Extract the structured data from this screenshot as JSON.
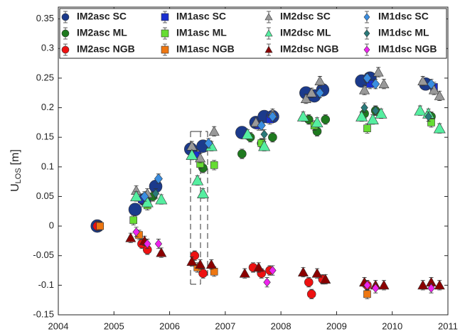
{
  "chart_data": {
    "type": "scatter",
    "ylabel": "U",
    "ylabel_sub": "LOS",
    "ylabel_unit": "[m]",
    "xlim": [
      2004,
      2011
    ],
    "xticks": [
      2004,
      2005,
      2006,
      2007,
      2008,
      2009,
      2010,
      2011
    ],
    "ylim": [
      -0.15,
      0.37
    ],
    "yticks": [
      -0.15,
      -0.1,
      -0.05,
      0,
      0.05,
      0.1,
      0.15,
      0.2,
      0.25,
      0.3,
      0.35
    ],
    "grid": false,
    "legend": "top",
    "series": [
      {
        "name": "IM2asc SC",
        "color": "#1b3a8c",
        "marker": "circle",
        "size": 9,
        "error": 0.008,
        "x": [
          2004.7,
          2005.38,
          2005.55,
          2005.75,
          2006.38,
          2006.6,
          2007.3,
          2007.55,
          2007.7,
          2007.85,
          2008.45,
          2008.6,
          2008.75,
          2009.45,
          2009.6,
          2010.6
        ],
        "values": [
          0,
          0.028,
          0.045,
          0.067,
          0.13,
          0.135,
          0.158,
          0.175,
          0.185,
          0.185,
          0.225,
          0.22,
          0.23,
          0.245,
          0.25,
          0.24
        ]
      },
      {
        "name": "IM2asc ML",
        "color": "#1f7a1f",
        "marker": "circle",
        "size": 6,
        "error": 0.008,
        "x": [
          2005.7,
          2006.6,
          2007.3,
          2007.45,
          2007.65,
          2007.85,
          2008.5,
          2008.65,
          2008.8,
          2009.5,
          2009.7,
          2010.7
        ],
        "values": [
          0.05,
          0.098,
          0.122,
          0.15,
          0.14,
          0.15,
          0.18,
          0.16,
          0.18,
          0.19,
          0.195,
          0.185
        ]
      },
      {
        "name": "IM2asc NGB",
        "color": "#ee1111",
        "marker": "circle",
        "size": 6,
        "error": 0.008,
        "x": [
          2004.7,
          2005.5,
          2005.6,
          2006.45,
          2006.6,
          2007.5,
          2007.65,
          2007.8,
          2008.5,
          2008.55,
          2008.75,
          2009.55
        ],
        "values": [
          0,
          -0.03,
          -0.04,
          -0.05,
          -0.08,
          -0.07,
          -0.08,
          -0.075,
          -0.095,
          -0.115,
          -0.09,
          -0.1
        ]
      },
      {
        "name": "IM1asc SC",
        "color": "#1a2fd0",
        "marker": "square",
        "size": 5,
        "error": 0.008,
        "x": [
          2005.5,
          2006.5,
          2007.6,
          2007.8,
          2009.6,
          2010.75
        ],
        "values": [
          0.045,
          0.12,
          0.17,
          0.18,
          0.24,
          0.235
        ]
      },
      {
        "name": "IM1asc ML",
        "color": "#66dd33",
        "marker": "square",
        "size": 5,
        "error": 0.008,
        "x": [
          2005.35,
          2005.6,
          2006.55,
          2006.8,
          2007.65,
          2008.6,
          2009.55,
          2010.7
        ],
        "values": [
          0.01,
          0.035,
          0.105,
          0.103,
          0.14,
          0.17,
          0.165,
          0.175
        ]
      },
      {
        "name": "IM1asc NGB",
        "color": "#ee7711",
        "marker": "square",
        "size": 5,
        "error": 0.008,
        "x": [
          2004.75,
          2005.45,
          2006.5,
          2006.8,
          2009.55
        ],
        "values": [
          0,
          -0.015,
          -0.07,
          -0.077,
          -0.115
        ]
      },
      {
        "name": "IM2dsc SC",
        "color": "#999999",
        "marker": "triangle",
        "size": 7,
        "error": 0.008,
        "x": [
          2005.4,
          2005.6,
          2006.4,
          2006.55,
          2006.8,
          2007.55,
          2007.85,
          2008.45,
          2008.55,
          2008.7,
          2009.5,
          2009.75,
          2009.85,
          2010.55,
          2010.75,
          2010.85
        ],
        "values": [
          0.06,
          0.055,
          0.135,
          0.115,
          0.16,
          0.175,
          0.19,
          0.215,
          0.225,
          0.245,
          0.23,
          0.26,
          0.24,
          0.245,
          0.23,
          0.22
        ]
      },
      {
        "name": "IM2dsc ML",
        "color": "#55eea0",
        "marker": "triangle",
        "size": 8,
        "error": 0.008,
        "x": [
          2005.4,
          2005.6,
          2005.85,
          2006.4,
          2006.5,
          2006.6,
          2006.75,
          2007.4,
          2007.7,
          2008.4,
          2008.65,
          2009.45,
          2009.65,
          2009.8,
          2010.5,
          2010.65,
          2010.85
        ],
        "values": [
          0.05,
          0.04,
          0.045,
          0.12,
          0.077,
          0.055,
          0.135,
          0.155,
          0.135,
          0.185,
          0.175,
          0.185,
          0.18,
          0.19,
          0.195,
          0.19,
          0.165
        ]
      },
      {
        "name": "IM2dsc NGB",
        "color": "#8b0000",
        "marker": "triangle",
        "size": 7,
        "error": 0.008,
        "x": [
          2005.3,
          2005.55,
          2005.85,
          2006.4,
          2006.55,
          2006.75,
          2007.35,
          2007.6,
          2008.4,
          2008.65,
          2008.8,
          2009.5,
          2009.7,
          2009.85,
          2010.55,
          2010.7,
          2010.85
        ],
        "values": [
          -0.02,
          -0.025,
          -0.045,
          -0.06,
          -0.065,
          -0.065,
          -0.08,
          -0.07,
          -0.078,
          -0.08,
          -0.09,
          -0.095,
          -0.1,
          -0.1,
          -0.1,
          -0.095,
          -0.1
        ]
      },
      {
        "name": "IM1dsc SC",
        "color": "#3a8de0",
        "marker": "diamond",
        "size": 7,
        "error": 0.008,
        "x": [
          2005.55,
          2005.8,
          2006.7,
          2007.65,
          2007.85,
          2008.7,
          2009.55,
          2009.7,
          2010.7
        ],
        "values": [
          0.05,
          0.08,
          0.14,
          0.17,
          0.185,
          0.225,
          0.25,
          0.24,
          0.24
        ]
      },
      {
        "name": "IM1dsc ML",
        "color": "#2a7a7a",
        "marker": "diamond",
        "size": 6,
        "error": 0.008,
        "x": [
          2005.75,
          2007.7,
          2009.5,
          2009.7,
          2010.65
        ],
        "values": [
          0.055,
          0.155,
          0.2,
          0.195,
          0.185
        ]
      },
      {
        "name": "IM1dsc NGB",
        "color": "#ee22ee",
        "marker": "diamond",
        "size": 6,
        "error": 0.008,
        "x": [
          2005.4,
          2005.6,
          2005.8,
          2007.75,
          2007.85,
          2009.55,
          2009.7,
          2010.7
        ],
        "values": [
          -0.01,
          -0.03,
          -0.03,
          -0.095,
          -0.075,
          -0.1,
          -0.105,
          -0.105
        ]
      }
    ]
  }
}
